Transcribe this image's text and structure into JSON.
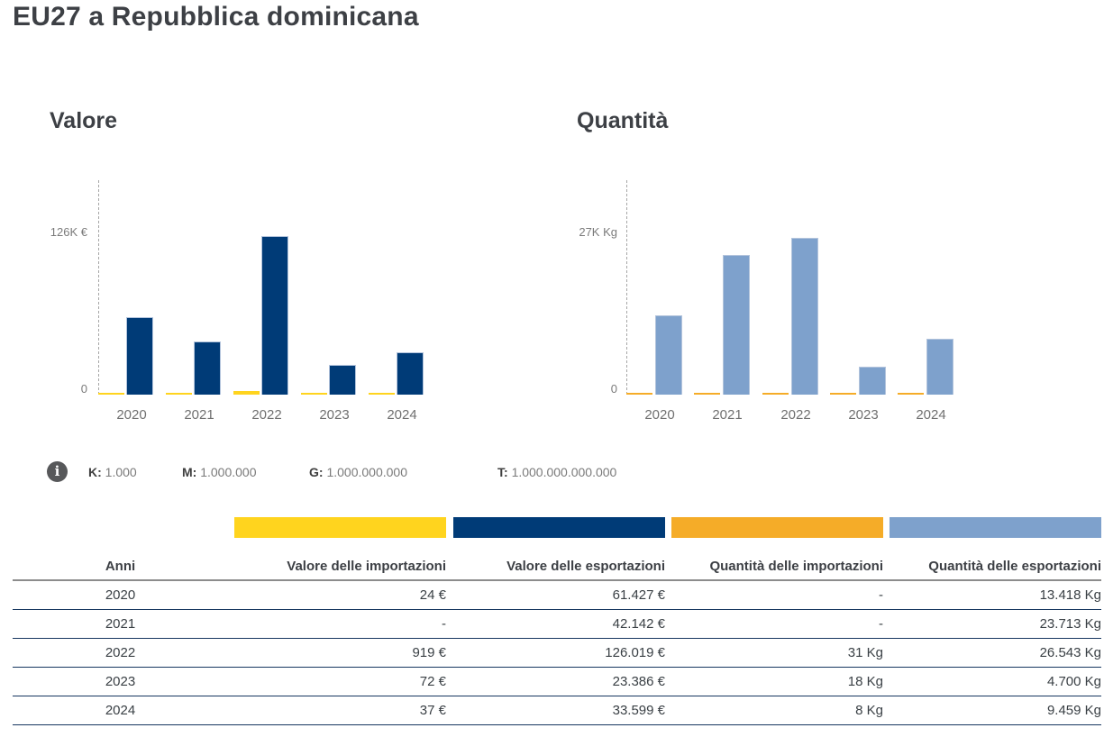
{
  "page": {
    "title": "EU27 a Repubblica dominicana"
  },
  "chart_data": [
    {
      "type": "bar",
      "title": "Valore",
      "categories": [
        "2020",
        "2021",
        "2022",
        "2023",
        "2024"
      ],
      "series": [
        {
          "name": "Valore delle importazioni",
          "color": "#FFD41E",
          "values": [
            24,
            null,
            919,
            72,
            37
          ]
        },
        {
          "name": "Valore delle esportazioni",
          "color": "#003B77",
          "values": [
            61427,
            42142,
            126019,
            23386,
            33599
          ]
        }
      ],
      "y_axis": {
        "max_label": "126K €",
        "zero_label": "0",
        "max_value": 126019,
        "unit": "€"
      },
      "grid": false,
      "legend_position": "none"
    },
    {
      "type": "bar",
      "title": "Quantità",
      "categories": [
        "2020",
        "2021",
        "2022",
        "2023",
        "2024"
      ],
      "series": [
        {
          "name": "Quantità delle importazioni",
          "color": "#F5AC28",
          "values": [
            null,
            null,
            31,
            18,
            8
          ]
        },
        {
          "name": "Quantità delle esportazioni",
          "color": "#7EA1CC",
          "values": [
            13418,
            23713,
            26543,
            4700,
            9459
          ]
        }
      ],
      "y_axis": {
        "max_label": "27K Kg",
        "zero_label": "0",
        "max_value": 26543,
        "unit": "Kg"
      },
      "grid": false,
      "legend_position": "none"
    }
  ],
  "units_legend": {
    "items": [
      {
        "key": "K:",
        "value": "1.000"
      },
      {
        "key": "M:",
        "value": "1.000.000"
      },
      {
        "key": "G:",
        "value": "1.000.000.000"
      },
      {
        "key": "T:",
        "value": "1.000.000.000.000"
      }
    ]
  },
  "legend": {
    "swatch_colors": [
      "#FFD41E",
      "#003B77",
      "#F5AC28",
      "#7EA1CC"
    ]
  },
  "table": {
    "columns": [
      "Anni",
      "Valore delle importazioni",
      "Valore delle esportazioni",
      "Quantità delle importazioni",
      "Quantità delle esportazioni"
    ],
    "rows": [
      [
        "2020",
        "24 €",
        "61.427 €",
        "-",
        "13.418 Kg"
      ],
      [
        "2021",
        "-",
        "42.142 €",
        "-",
        "23.713 Kg"
      ],
      [
        "2022",
        "919 €",
        "126.019 €",
        "31 Kg",
        "26.543 Kg"
      ],
      [
        "2023",
        "72 €",
        "23.386 €",
        "18 Kg",
        "4.700 Kg"
      ],
      [
        "2024",
        "37 €",
        "33.599 €",
        "8 Kg",
        "9.459 Kg"
      ]
    ]
  }
}
